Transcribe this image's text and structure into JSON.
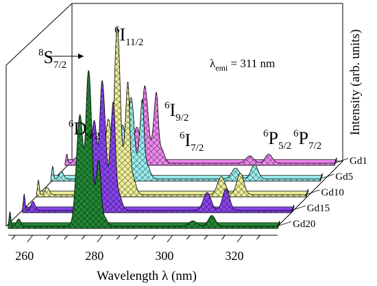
{
  "chart_data": {
    "type": "area",
    "projection": "3d-waterfall",
    "xlabel": "Wavelength λ (nm)",
    "ylabel": "Intensity (arb. units)",
    "xlim": [
      253,
      330
    ],
    "x_ticks": [
      "260",
      "280",
      "300",
      "320"
    ],
    "emission_label": "λemi = 311 nm",
    "emission_label_main": "λ",
    "emission_label_sub": "emi",
    "emission_label_rest": " = 311 nm",
    "annotations": [
      {
        "main": "8S",
        "sub": "7/2",
        "x": 254
      },
      {
        "main": "6D",
        "sub": "9/2",
        "x": 274
      },
      {
        "main": "6I",
        "sub": "11/2",
        "x": 273
      },
      {
        "main": "6I",
        "sub": "9/2",
        "x": 279
      },
      {
        "main": "6I",
        "sub": "7/2",
        "x": 281
      },
      {
        "main": "6P",
        "sub": "5/2",
        "x": 306
      },
      {
        "main": "6P",
        "sub": "7/2",
        "x": 311
      }
    ],
    "peaks_nm": [
      253.5,
      256,
      273.5,
      275.5,
      276.3,
      278.6,
      279.2,
      280.4,
      305.8,
      311.2
    ],
    "series": [
      {
        "name": "Gd1",
        "color": "#ee88ee",
        "peaks": [
          0.05,
          0.03,
          0.2,
          0.22,
          0.3,
          0.22,
          0.2,
          0.08,
          0.04,
          0.05
        ]
      },
      {
        "name": "Gd5",
        "color": "#99eeee",
        "peaks": [
          0.07,
          0.04,
          0.3,
          0.18,
          0.36,
          0.22,
          0.25,
          0.08,
          0.06,
          0.08
        ]
      },
      {
        "name": "Gd10",
        "color": "#eeee99",
        "peaks": [
          0.08,
          0.04,
          0.42,
          0.3,
          0.8,
          0.36,
          0.32,
          0.1,
          0.1,
          0.12
        ]
      },
      {
        "name": "Gd15",
        "color": "#8844ee",
        "peaks": [
          0.09,
          0.05,
          0.5,
          0.34,
          0.52,
          0.44,
          0.22,
          0.1,
          0.1,
          0.12
        ]
      },
      {
        "name": "Gd20",
        "color": "#228833",
        "peaks": [
          0.08,
          0.04,
          0.62,
          0.3,
          0.72,
          0.3,
          0.1,
          0.05,
          0.03,
          0.06
        ]
      }
    ]
  }
}
